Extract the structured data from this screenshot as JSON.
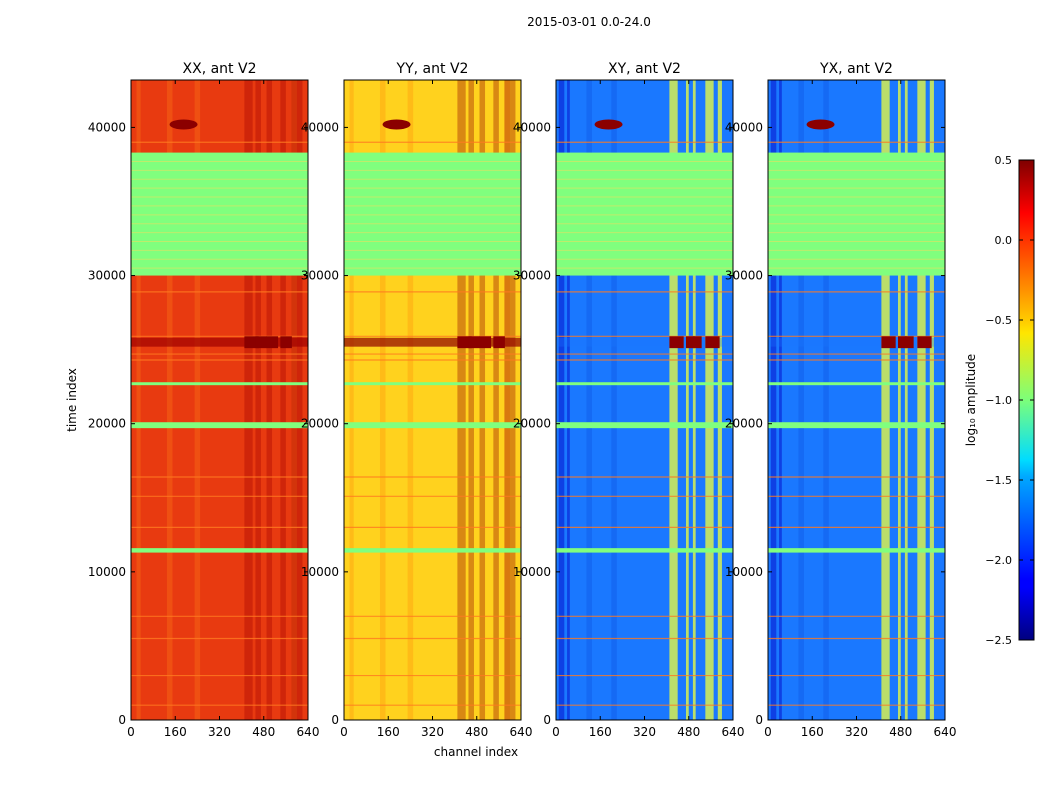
{
  "figure": {
    "suptitle": "2015-03-01 0.0-24.0",
    "xlabel": "channel index",
    "ylabel": "time index"
  },
  "chart_data": {
    "type": "heatmap",
    "x_range": [
      0,
      640
    ],
    "y_range": [
      0,
      43200
    ],
    "x_ticks": [
      0,
      160,
      320,
      480,
      640
    ],
    "y_ticks": [
      0,
      10000,
      20000,
      30000,
      40000
    ],
    "panels": [
      {
        "title": "XX, ant V2",
        "base": 0.05,
        "mode": "auto",
        "colors": {
          "bg": "#e83a10",
          "stripe": "#f25a14",
          "dark": "#c81406",
          "hot": "#a00000"
        }
      },
      {
        "title": "YY, ant V2",
        "base": -0.5,
        "mode": "auto",
        "colors": {
          "bg": "#ffd21e",
          "stripe": "#ffb014",
          "dark": "#dc2808",
          "hot": "#900000"
        }
      },
      {
        "title": "XY, ant V2",
        "base": -1.6,
        "mode": "cross",
        "colors": {
          "bg": "#1a78ff",
          "stripe": "#1464f0",
          "dark": "#0a28d8",
          "hot": "#d8f050"
        }
      },
      {
        "title": "YX, ant V2",
        "base": -1.6,
        "mode": "cross",
        "colors": {
          "bg": "#1a78ff",
          "stripe": "#1464f0",
          "dark": "#0a28d8",
          "hot": "#d8f050"
        }
      }
    ],
    "flagged_bands": [
      [
        30000,
        38300
      ],
      [
        11300,
        11600
      ],
      [
        19700,
        20100
      ],
      [
        22600,
        22800
      ]
    ],
    "colorbar": {
      "label": "log₁₀ amplitude",
      "min": -2.5,
      "max": 0.5,
      "ticks": [
        "0.5",
        "0.0",
        "−0.5",
        "−1.0",
        "−1.5",
        "−2.0",
        "−2.5"
      ],
      "colormap": "jet"
    }
  }
}
